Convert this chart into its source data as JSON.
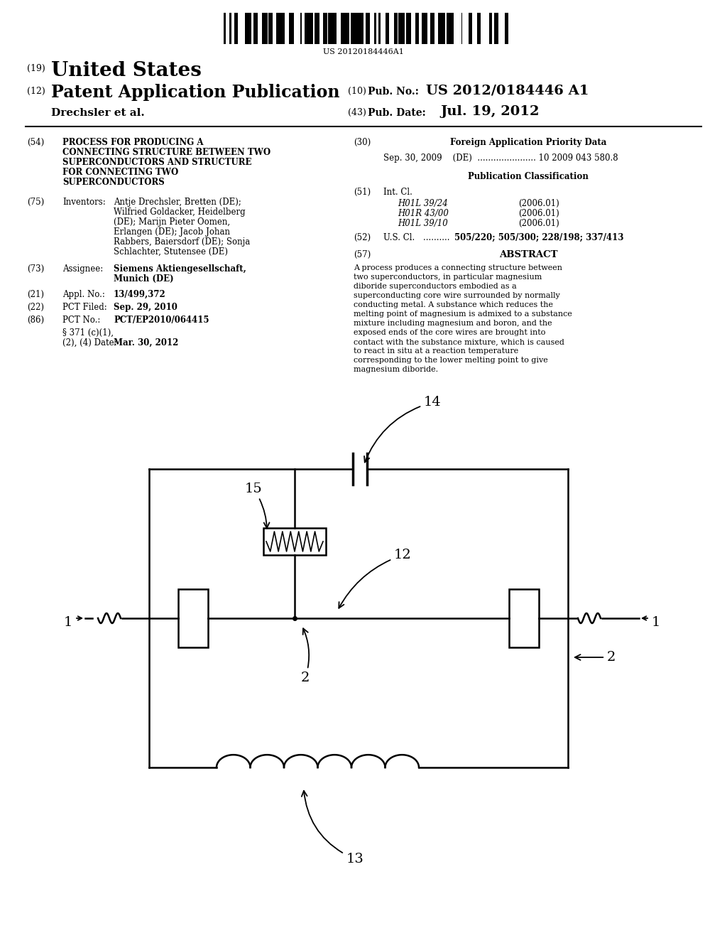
{
  "background_color": "#ffffff",
  "barcode_text": "US 20120184446A1",
  "header": {
    "number_19": "(19)",
    "united_states": "United States",
    "number_12": "(12)",
    "patent_app_pub": "Patent Application Publication",
    "number_10": "(10)",
    "pub_no_label": "Pub. No.:",
    "pub_no_value": "US 2012/0184446 A1",
    "inventor_line": "Drechsler et al.",
    "number_43": "(43)",
    "pub_date_label": "Pub. Date:",
    "pub_date_value": "Jul. 19, 2012"
  },
  "left_col": {
    "tag54": "(54)",
    "title_lines": [
      "PROCESS FOR PRODUCING A",
      "CONNECTING STRUCTURE BETWEEN TWO",
      "SUPERCONDUCTORS AND STRUCTURE",
      "FOR CONNECTING TWO",
      "SUPERCONDUCTORS"
    ],
    "tag75": "(75)",
    "inventors_label": "Inventors:",
    "inventors_lines": [
      "Antje Drechsler, Bretten (DE);",
      "Wilfried Goldacker, Heidelberg",
      "(DE); Marijn Pieter Oomen,",
      "Erlangen (DE); Jacob Johan",
      "Rabbers, Baiersdorf (DE); Sonja",
      "Schlachter, Stutensee (DE)"
    ],
    "tag73": "(73)",
    "assignee_label": "Assignee:",
    "assignee_lines": [
      "Siemens Aktiengesellschaft,",
      "Munich (DE)"
    ],
    "tag21": "(21)",
    "appl_label": "Appl. No.:",
    "appl_value": "13/499,372",
    "tag22": "(22)",
    "pct_filed_label": "PCT Filed:",
    "pct_filed_value": "Sep. 29, 2010",
    "tag86": "(86)",
    "pct_no_label": "PCT No.:",
    "pct_no_value": "PCT/EP2010/064415",
    "s371_label_lines": [
      "§ 371 (c)(1),",
      "(2), (4) Date:"
    ],
    "s371_value": "Mar. 30, 2012"
  },
  "right_col": {
    "tag30": "(30)",
    "foreign_title": "Foreign Application Priority Data",
    "foreign_content": "Sep. 30, 2009    (DE)  ...................... 10 2009 043 580.8",
    "pub_class_title": "Publication Classification",
    "tag51": "(51)",
    "int_cl_label": "Int. Cl.",
    "int_cl_entries": [
      {
        "code": "H01L 39/24",
        "year": "(2006.01)"
      },
      {
        "code": "H01R 43/00",
        "year": "(2006.01)"
      },
      {
        "code": "H01L 39/10",
        "year": "(2006.01)"
      }
    ],
    "tag52": "(52)",
    "us_cl_label": "U.S. Cl.",
    "us_cl_dots": ".......... ",
    "us_cl_value": "505/220; 505/300; 228/198; 337/413",
    "tag57": "(57)",
    "abstract_title": "ABSTRACT",
    "abstract_text": "A process produces a connecting structure between two superconductors, in particular magnesium diboride superconductors embodied as a superconducting core wire surrounded by normally conducting metal. A substance which reduces the melting point of magnesium is admixed to a substance mixture including magnesium and boron, and the exposed ends of the core wires are brought into contact with the substance mixture, which is caused to react in situ at a reaction temperature corresponding to the lower melting point to give magnesium diboride."
  }
}
